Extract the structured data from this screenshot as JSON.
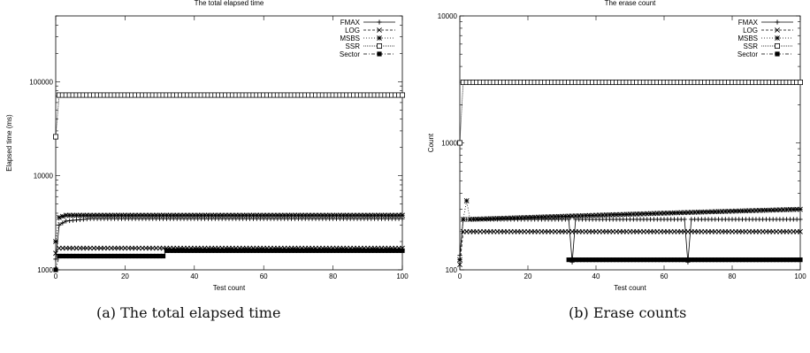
{
  "captions": {
    "a": "(a) The total elapsed time",
    "b": "(b) Erase counts"
  },
  "chart_data": [
    {
      "type": "line",
      "title": "The total elapsed time",
      "xlabel": "Test count",
      "ylabel": "Elapsed time (ms)",
      "xlim": [
        0,
        100
      ],
      "ylim": [
        1000,
        500000
      ],
      "yscale": "log",
      "xticks": [
        0,
        20,
        40,
        60,
        80,
        100
      ],
      "yticks": [
        1000,
        10000,
        100000
      ],
      "legend": "top-right",
      "series": [
        {
          "name": "FMAX",
          "marker": "plus",
          "dash": "",
          "points": [
            [
              0,
              1300
            ],
            [
              1,
              3000
            ],
            [
              3,
              3300
            ],
            [
              10,
              3500
            ],
            [
              50,
              3500
            ],
            [
              100,
              3500
            ]
          ]
        },
        {
          "name": "LOG",
          "marker": "cross",
          "dash": "3,2",
          "points": [
            [
              0,
              1500
            ],
            [
              1,
              1700
            ],
            [
              50,
              1700
            ],
            [
              100,
              1700
            ]
          ]
        },
        {
          "name": "MSBS",
          "marker": "star",
          "dash": "1,2",
          "points": [
            [
              0,
              2000
            ],
            [
              1,
              3600
            ],
            [
              3,
              3800
            ],
            [
              50,
              3800
            ],
            [
              100,
              3800
            ]
          ]
        },
        {
          "name": "SSR",
          "marker": "square-open",
          "dash": "1,1",
          "points": [
            [
              0,
              26000
            ],
            [
              1,
              72000
            ],
            [
              50,
              72000
            ],
            [
              100,
              72000
            ]
          ]
        },
        {
          "name": "Sector",
          "marker": "square-filled",
          "dash": "4,2,1,2",
          "points": [
            [
              0,
              1000
            ],
            [
              1,
              1400
            ],
            [
              31,
              1400
            ],
            [
              32,
              1600
            ],
            [
              100,
              1600
            ]
          ]
        }
      ]
    },
    {
      "type": "line",
      "title": "The erase count",
      "xlabel": "Test count",
      "ylabel": "Count",
      "xlim": [
        0,
        100
      ],
      "ylim": [
        100,
        10000
      ],
      "yscale": "log",
      "xticks": [
        0,
        20,
        40,
        60,
        80,
        100
      ],
      "yticks": [
        100,
        1000,
        10000
      ],
      "legend": "top-right",
      "series": [
        {
          "name": "FMAX",
          "marker": "plus",
          "dash": "",
          "points": [
            [
              0,
              130
            ],
            [
              1,
              250
            ],
            [
              32,
              250
            ],
            [
              33,
              115
            ],
            [
              34,
              250
            ],
            [
              66,
              250
            ],
            [
              67,
              115
            ],
            [
              68,
              250
            ],
            [
              100,
              250
            ]
          ]
        },
        {
          "name": "LOG",
          "marker": "cross",
          "dash": "3,2",
          "points": [
            [
              0,
              110
            ],
            [
              1,
              200
            ],
            [
              50,
              200
            ],
            [
              100,
              200
            ]
          ]
        },
        {
          "name": "MSBS",
          "marker": "star",
          "dash": "1,2",
          "points": [
            [
              0,
              120
            ],
            [
              1,
              250
            ],
            [
              2,
              350
            ],
            [
              3,
              250
            ],
            [
              100,
              300
            ]
          ]
        },
        {
          "name": "SSR",
          "marker": "square-open",
          "dash": "1,1",
          "points": [
            [
              0,
              1000
            ],
            [
              1,
              3000
            ],
            [
              50,
              3000
            ],
            [
              100,
              3000
            ]
          ]
        },
        {
          "name": "Sector",
          "marker": "square-filled",
          "dash": "4,2,1,2",
          "points": [
            [
              32,
              120
            ],
            [
              100,
              120
            ]
          ]
        }
      ]
    }
  ]
}
